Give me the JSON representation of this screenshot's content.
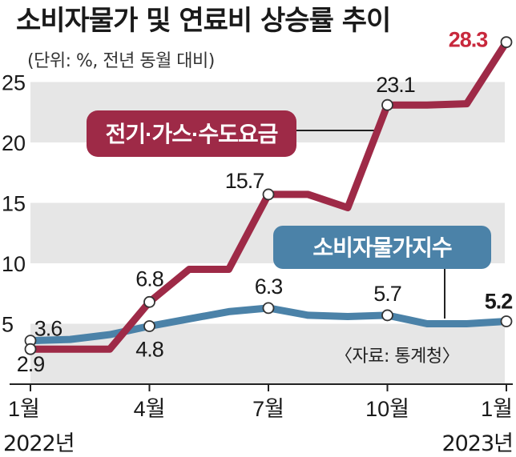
{
  "title": "소비자물가 및 연료비 상승률 추이",
  "subtitle": "(단위: %, 전년 동월 대비)",
  "source": "〈자료: 통계청〉",
  "chart_data": {
    "type": "line",
    "xlabel": "",
    "ylabel": "",
    "ylim": [
      0,
      30
    ],
    "y_ticks": [
      5,
      10,
      15,
      20,
      25
    ],
    "x_ticks": [
      {
        "index": 0,
        "label": "1월"
      },
      {
        "index": 3,
        "label": "4월"
      },
      {
        "index": 6,
        "label": "7월"
      },
      {
        "index": 9,
        "label": "10월"
      },
      {
        "index": 12,
        "label": "1월"
      }
    ],
    "year_labels": {
      "start": "2022년",
      "end": "2023년"
    },
    "categories": [
      "2022-01",
      "2022-02",
      "2022-03",
      "2022-04",
      "2022-05",
      "2022-06",
      "2022-07",
      "2022-08",
      "2022-09",
      "2022-10",
      "2022-11",
      "2022-12",
      "2023-01"
    ],
    "series": [
      {
        "name": "전기·가스·수도요금",
        "color": "#9e2a47",
        "values": [
          2.9,
          2.9,
          2.9,
          6.8,
          9.5,
          9.5,
          15.7,
          15.7,
          14.6,
          23.1,
          23.1,
          23.2,
          28.3
        ],
        "labels": [
          {
            "index": 0,
            "text": "2.9"
          },
          {
            "index": 3,
            "text": "6.8"
          },
          {
            "index": 6,
            "text": "15.7"
          },
          {
            "index": 9,
            "text": "23.1"
          },
          {
            "index": 12,
            "text": "28.3"
          }
        ]
      },
      {
        "name": "소비자물가지수",
        "color": "#4b82a8",
        "values": [
          3.6,
          3.7,
          4.1,
          4.8,
          5.4,
          6.0,
          6.3,
          5.7,
          5.6,
          5.7,
          5.0,
          5.0,
          5.2
        ],
        "labels": [
          {
            "index": 0,
            "text": "3.6"
          },
          {
            "index": 3,
            "text": "4.8"
          },
          {
            "index": 6,
            "text": "6.3"
          },
          {
            "index": 9,
            "text": "5.7"
          },
          {
            "index": 12,
            "text": "5.2"
          }
        ]
      }
    ],
    "colors": {
      "band": "#e6e6e6",
      "accent": "#c8283c",
      "axis": "#222222"
    }
  }
}
